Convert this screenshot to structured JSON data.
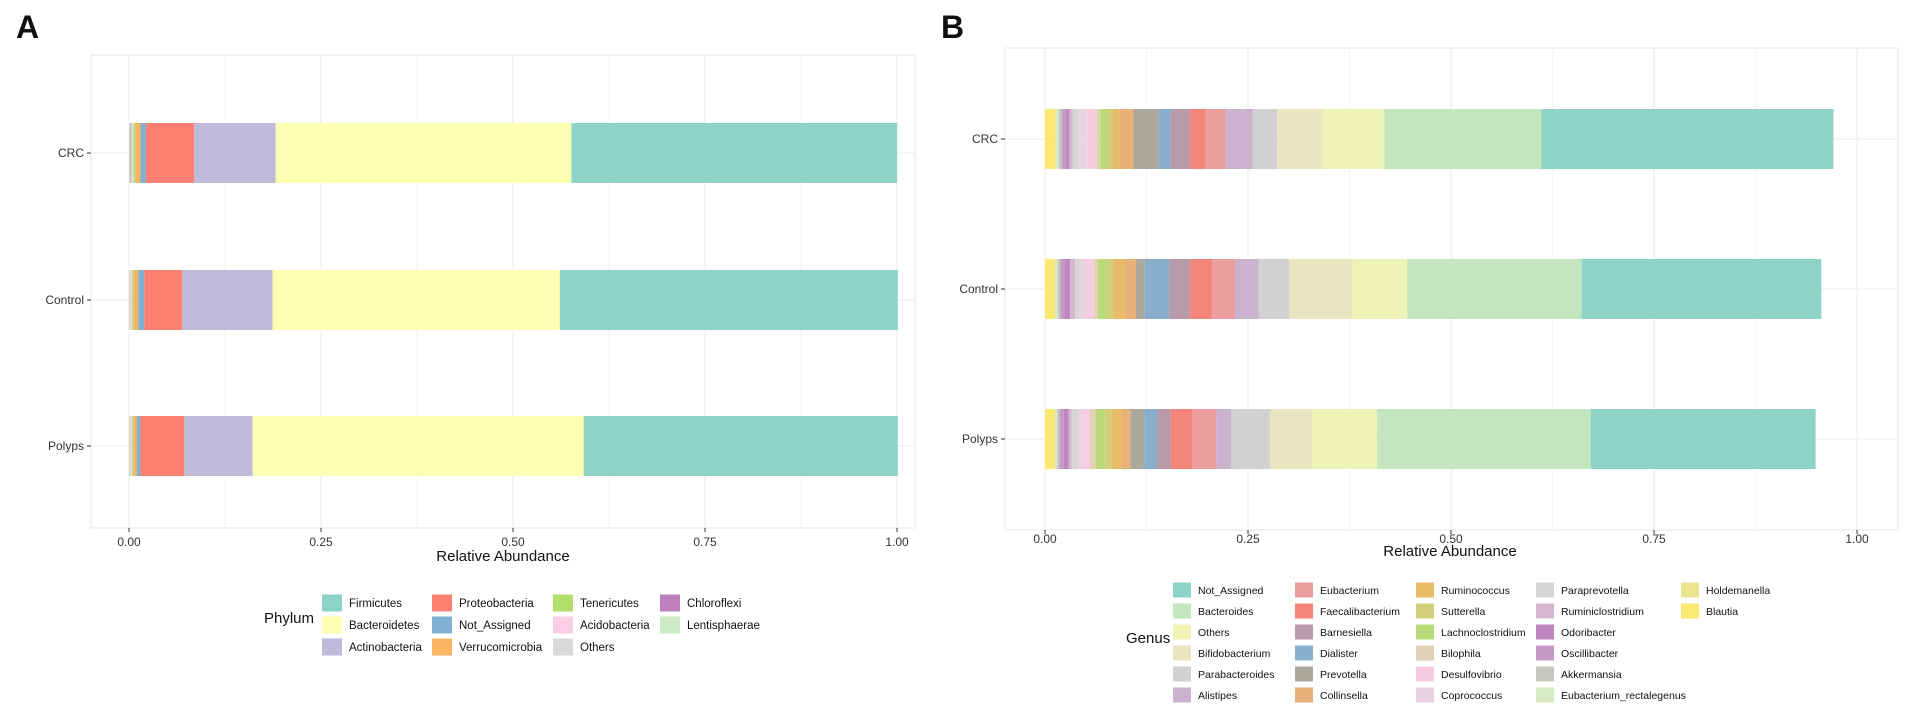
{
  "chart_data": [
    {
      "panel": "A",
      "type": "bar",
      "orientation": "horizontal",
      "stacked": true,
      "xlabel": "Relative Abundance",
      "ylabel": "",
      "xlim": [
        0,
        1
      ],
      "x_ticks": [
        "0.00",
        "0.25",
        "0.50",
        "0.75",
        "1.00"
      ],
      "categories": [
        "CRC",
        "Control",
        "Polyps"
      ],
      "legend_title": "Phylum",
      "legend_position": "bottom",
      "grid": true,
      "series": [
        {
          "name": "Firmicutes",
          "color": "#8DD3C7",
          "values": [
            0.424,
            0.44,
            0.409
          ]
        },
        {
          "name": "Bacteroidetes",
          "color": "#FFFFB3",
          "values": [
            0.385,
            0.374,
            0.431
          ]
        },
        {
          "name": "Actinobacteria",
          "color": "#BEBADA",
          "values": [
            0.106,
            0.118,
            0.089
          ]
        },
        {
          "name": "Proteobacteria",
          "color": "#FB8072",
          "values": [
            0.063,
            0.049,
            0.057
          ]
        },
        {
          "name": "Not_Assigned",
          "color": "#80B1D3",
          "values": [
            0.007,
            0.008,
            0.005
          ]
        },
        {
          "name": "Verrucomicrobia",
          "color": "#FDB462",
          "values": [
            0.006,
            0.006,
            0.004
          ]
        },
        {
          "name": "Tenericutes",
          "color": "#B3DE69",
          "values": [
            0.003,
            0.002,
            0.002
          ]
        },
        {
          "name": "Acidobacteria",
          "color": "#FCCDE5",
          "values": [
            0.001,
            0.001,
            0.001
          ]
        },
        {
          "name": "Others",
          "color": "#D9D9D9",
          "values": [
            0.002,
            0.0015,
            0.0015
          ]
        },
        {
          "name": "Chloroflexi",
          "color": "#BC80BD",
          "values": [
            0.001,
            0.0005,
            0.0005
          ]
        },
        {
          "name": "Lentisphaerae",
          "color": "#CCEBC5",
          "values": [
            0.002,
            0.001,
            0.001
          ]
        }
      ],
      "legend_columns": [
        [
          "Firmicutes",
          "Bacteroidetes",
          "Actinobacteria"
        ],
        [
          "Proteobacteria",
          "Not_Assigned",
          "Verrucomicrobia"
        ],
        [
          "Tenericutes",
          "Acidobacteria",
          "Others"
        ],
        [
          "Chloroflexi",
          "Lentisphaerae"
        ]
      ]
    },
    {
      "panel": "B",
      "type": "bar",
      "orientation": "horizontal",
      "stacked": true,
      "xlabel": "Relative Abundance",
      "ylabel": "",
      "xlim": [
        0,
        1
      ],
      "x_ticks": [
        "0.00",
        "0.25",
        "0.50",
        "0.75",
        "1.00"
      ],
      "categories": [
        "CRC",
        "Control",
        "Polyps"
      ],
      "legend_title": "Genus",
      "legend_position": "bottom",
      "grid": true,
      "series": [
        {
          "name": "Not_Assigned",
          "color": "#8DD3C7",
          "values": [
            0.36,
            0.295,
            0.277
          ]
        },
        {
          "name": "Bacteroides",
          "color": "#C4E6BE",
          "values": [
            0.193,
            0.215,
            0.263
          ]
        },
        {
          "name": "Others",
          "color": "#EEF3B6",
          "values": [
            0.077,
            0.067,
            0.08
          ]
        },
        {
          "name": "Bifidobacterium",
          "color": "#E8E5C0",
          "values": [
            0.055,
            0.078,
            0.052
          ]
        },
        {
          "name": "Parabacteroides",
          "color": "#D1D0D3",
          "values": [
            0.03,
            0.038,
            0.048
          ]
        },
        {
          "name": "Alistipes",
          "color": "#CBB2CF",
          "values": [
            0.033,
            0.029,
            0.018
          ]
        },
        {
          "name": "Eubacterium",
          "color": "#EA9E9F",
          "values": [
            0.025,
            0.028,
            0.029
          ]
        },
        {
          "name": "Faecalibacterium",
          "color": "#F3857A",
          "values": [
            0.019,
            0.027,
            0.027
          ]
        },
        {
          "name": "Barnesiella",
          "color": "#B99AA9",
          "values": [
            0.024,
            0.026,
            0.017
          ]
        },
        {
          "name": "Dialister",
          "color": "#89AFCD",
          "values": [
            0.015,
            0.03,
            0.016
          ]
        },
        {
          "name": "Prevotella",
          "color": "#ADA89C",
          "values": [
            0.031,
            0.011,
            0.017
          ]
        },
        {
          "name": "Collinsella",
          "color": "#E9B17A",
          "values": [
            0.017,
            0.014,
            0.011
          ]
        },
        {
          "name": "Ruminococcus",
          "color": "#E7BB68",
          "values": [
            0.009,
            0.013,
            0.012
          ]
        },
        {
          "name": "Sutterella",
          "color": "#D0CF7A",
          "values": [
            0.006,
            0.009,
            0.009
          ]
        },
        {
          "name": "Lachnoclostridium",
          "color": "#B9DA79",
          "values": [
            0.009,
            0.011,
            0.011
          ]
        },
        {
          "name": "Bilophila",
          "color": "#E2D1B8",
          "values": [
            0.005,
            0.005,
            0.007
          ]
        },
        {
          "name": "Desulfovibrio",
          "color": "#F6CDE0",
          "values": [
            0.011,
            0.009,
            0.008
          ]
        },
        {
          "name": "Coprococcus",
          "color": "#E8D3DE",
          "values": [
            0.01,
            0.008,
            0.006
          ]
        },
        {
          "name": "Paraprevotella",
          "color": "#D8D5D5",
          "values": [
            0.008,
            0.006,
            0.008
          ]
        },
        {
          "name": "Ruminiclostridium",
          "color": "#D3B6D2",
          "values": [
            0.004,
            0.006,
            0.004
          ]
        },
        {
          "name": "Odoribacter",
          "color": "#BF87BF",
          "values": [
            0.005,
            0.007,
            0.006
          ]
        },
        {
          "name": "Oscillibacter",
          "color": "#C599C4",
          "values": [
            0.004,
            0.005,
            0.005
          ]
        },
        {
          "name": "Akkermansia",
          "color": "#C6C7C0",
          "values": [
            0.004,
            0.003,
            0.003
          ]
        },
        {
          "name": "Eubacterium_rectalegenus",
          "color": "#D5EBC4",
          "values": [
            0.003,
            0.003,
            0.002
          ]
        },
        {
          "name": "Holdemanella",
          "color": "#ECE58F",
          "values": [
            0.002,
            0.002,
            0.002
          ]
        },
        {
          "name": "Blautia",
          "color": "#FBE870",
          "values": [
            0.012,
            0.011,
            0.011
          ]
        }
      ],
      "legend_columns": [
        [
          "Not_Assigned",
          "Bacteroides",
          "Others",
          "Bifidobacterium",
          "Parabacteroides",
          "Alistipes"
        ],
        [
          "Eubacterium",
          "Faecalibacterium",
          "Barnesiella",
          "Dialister",
          "Prevotella",
          "Collinsella"
        ],
        [
          "Ruminococcus",
          "Sutterella",
          "Lachnoclostridium",
          "Bilophila",
          "Desulfovibrio",
          "Coprococcus"
        ],
        [
          "Paraprevotella",
          "Ruminiclostridium",
          "Odoribacter",
          "Oscillibacter",
          "Akkermansia",
          "Eubacterium_rectalegenus"
        ],
        [
          "Holdemanella",
          "Blautia"
        ]
      ]
    }
  ]
}
